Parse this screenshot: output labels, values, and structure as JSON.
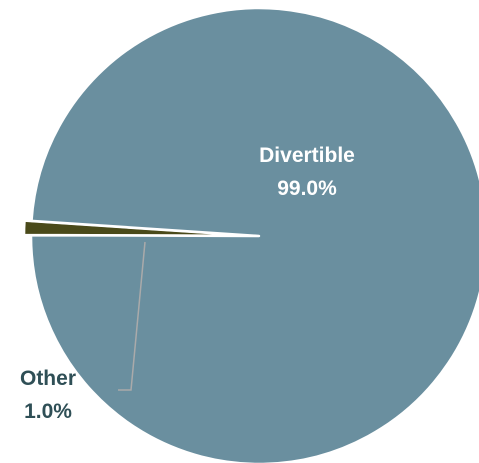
{
  "chart_data": {
    "type": "pie",
    "slices": [
      {
        "label": "Divertible",
        "value": 99.0,
        "value_label": "99.0%",
        "color": "#6a8f9f",
        "label_color": "#ffffff"
      },
      {
        "label": "Other",
        "value": 1.0,
        "value_label": "1.0%",
        "color": "#4a4a1a",
        "label_color": "#2f4f56"
      }
    ],
    "leader_line_color": "#aaaaaa"
  }
}
